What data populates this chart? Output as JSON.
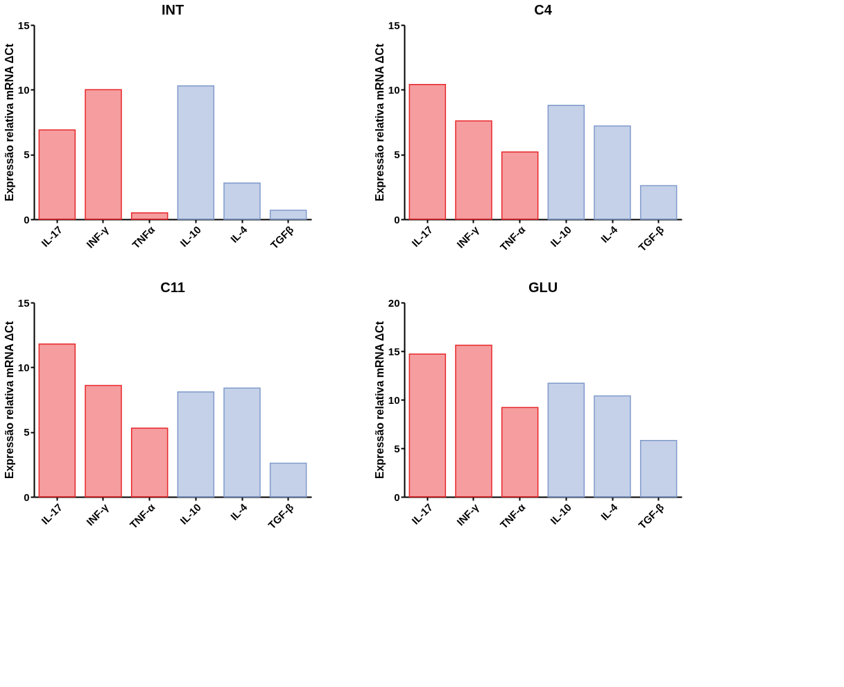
{
  "chart_data": [
    {
      "type": "bar",
      "title": "INT",
      "ylabel": "Expressão relativa  mRNA ΔCt",
      "categories": [
        "IL-17",
        "INF-γ",
        "TNFα",
        "IL-10",
        "IL-4",
        "TGFβ"
      ],
      "values": [
        6.9,
        10.0,
        0.5,
        10.3,
        2.8,
        0.7
      ],
      "colors": [
        "#e8262a",
        "#e8262a",
        "#e8262a",
        "#7f9acb",
        "#7f9acb",
        "#7f9acb"
      ],
      "ylim": [
        0,
        15
      ],
      "yticks": [
        0,
        5,
        10,
        15
      ],
      "grid": false
    },
    {
      "type": "bar",
      "title": "C4",
      "ylabel": "Expressão relativa  mRNA ΔCt",
      "categories": [
        "IL-17",
        "INF-γ",
        "TNF-α",
        "IL-10",
        "IL-4",
        "TGF-β"
      ],
      "values": [
        10.4,
        7.6,
        5.2,
        8.8,
        7.2,
        2.6
      ],
      "colors": [
        "#e8262a",
        "#e8262a",
        "#e8262a",
        "#7f9acb",
        "#7f9acb",
        "#7f9acb"
      ],
      "ylim": [
        0,
        15
      ],
      "yticks": [
        0,
        5,
        10,
        15
      ],
      "grid": false
    },
    {
      "type": "bar",
      "title": "C11",
      "ylabel": "Expressão relativa  mRNA ΔCt",
      "categories": [
        "IL-17",
        "INF-γ",
        "TNF-α",
        "IL-10",
        "IL-4",
        "TGF-β"
      ],
      "values": [
        11.8,
        8.6,
        5.3,
        8.1,
        8.4,
        2.6
      ],
      "colors": [
        "#e8262a",
        "#e8262a",
        "#e8262a",
        "#7f9acb",
        "#7f9acb",
        "#7f9acb"
      ],
      "ylim": [
        0,
        15
      ],
      "yticks": [
        0,
        5,
        10,
        15
      ],
      "grid": false
    },
    {
      "type": "bar",
      "title": "GLU",
      "ylabel": "Expressão relativa  mRNA ΔCt",
      "categories": [
        "IL-17",
        "INF-γ",
        "TNF-α",
        "IL-10",
        "IL-4",
        "TGF-β"
      ],
      "values": [
        14.7,
        15.6,
        9.2,
        11.7,
        10.4,
        5.8
      ],
      "colors": [
        "#e8262a",
        "#e8262a",
        "#e8262a",
        "#7f9acb",
        "#7f9acb",
        "#7f9acb"
      ],
      "ylim": [
        0,
        20
      ],
      "yticks": [
        0,
        5,
        10,
        15,
        20
      ],
      "grid": false
    }
  ]
}
